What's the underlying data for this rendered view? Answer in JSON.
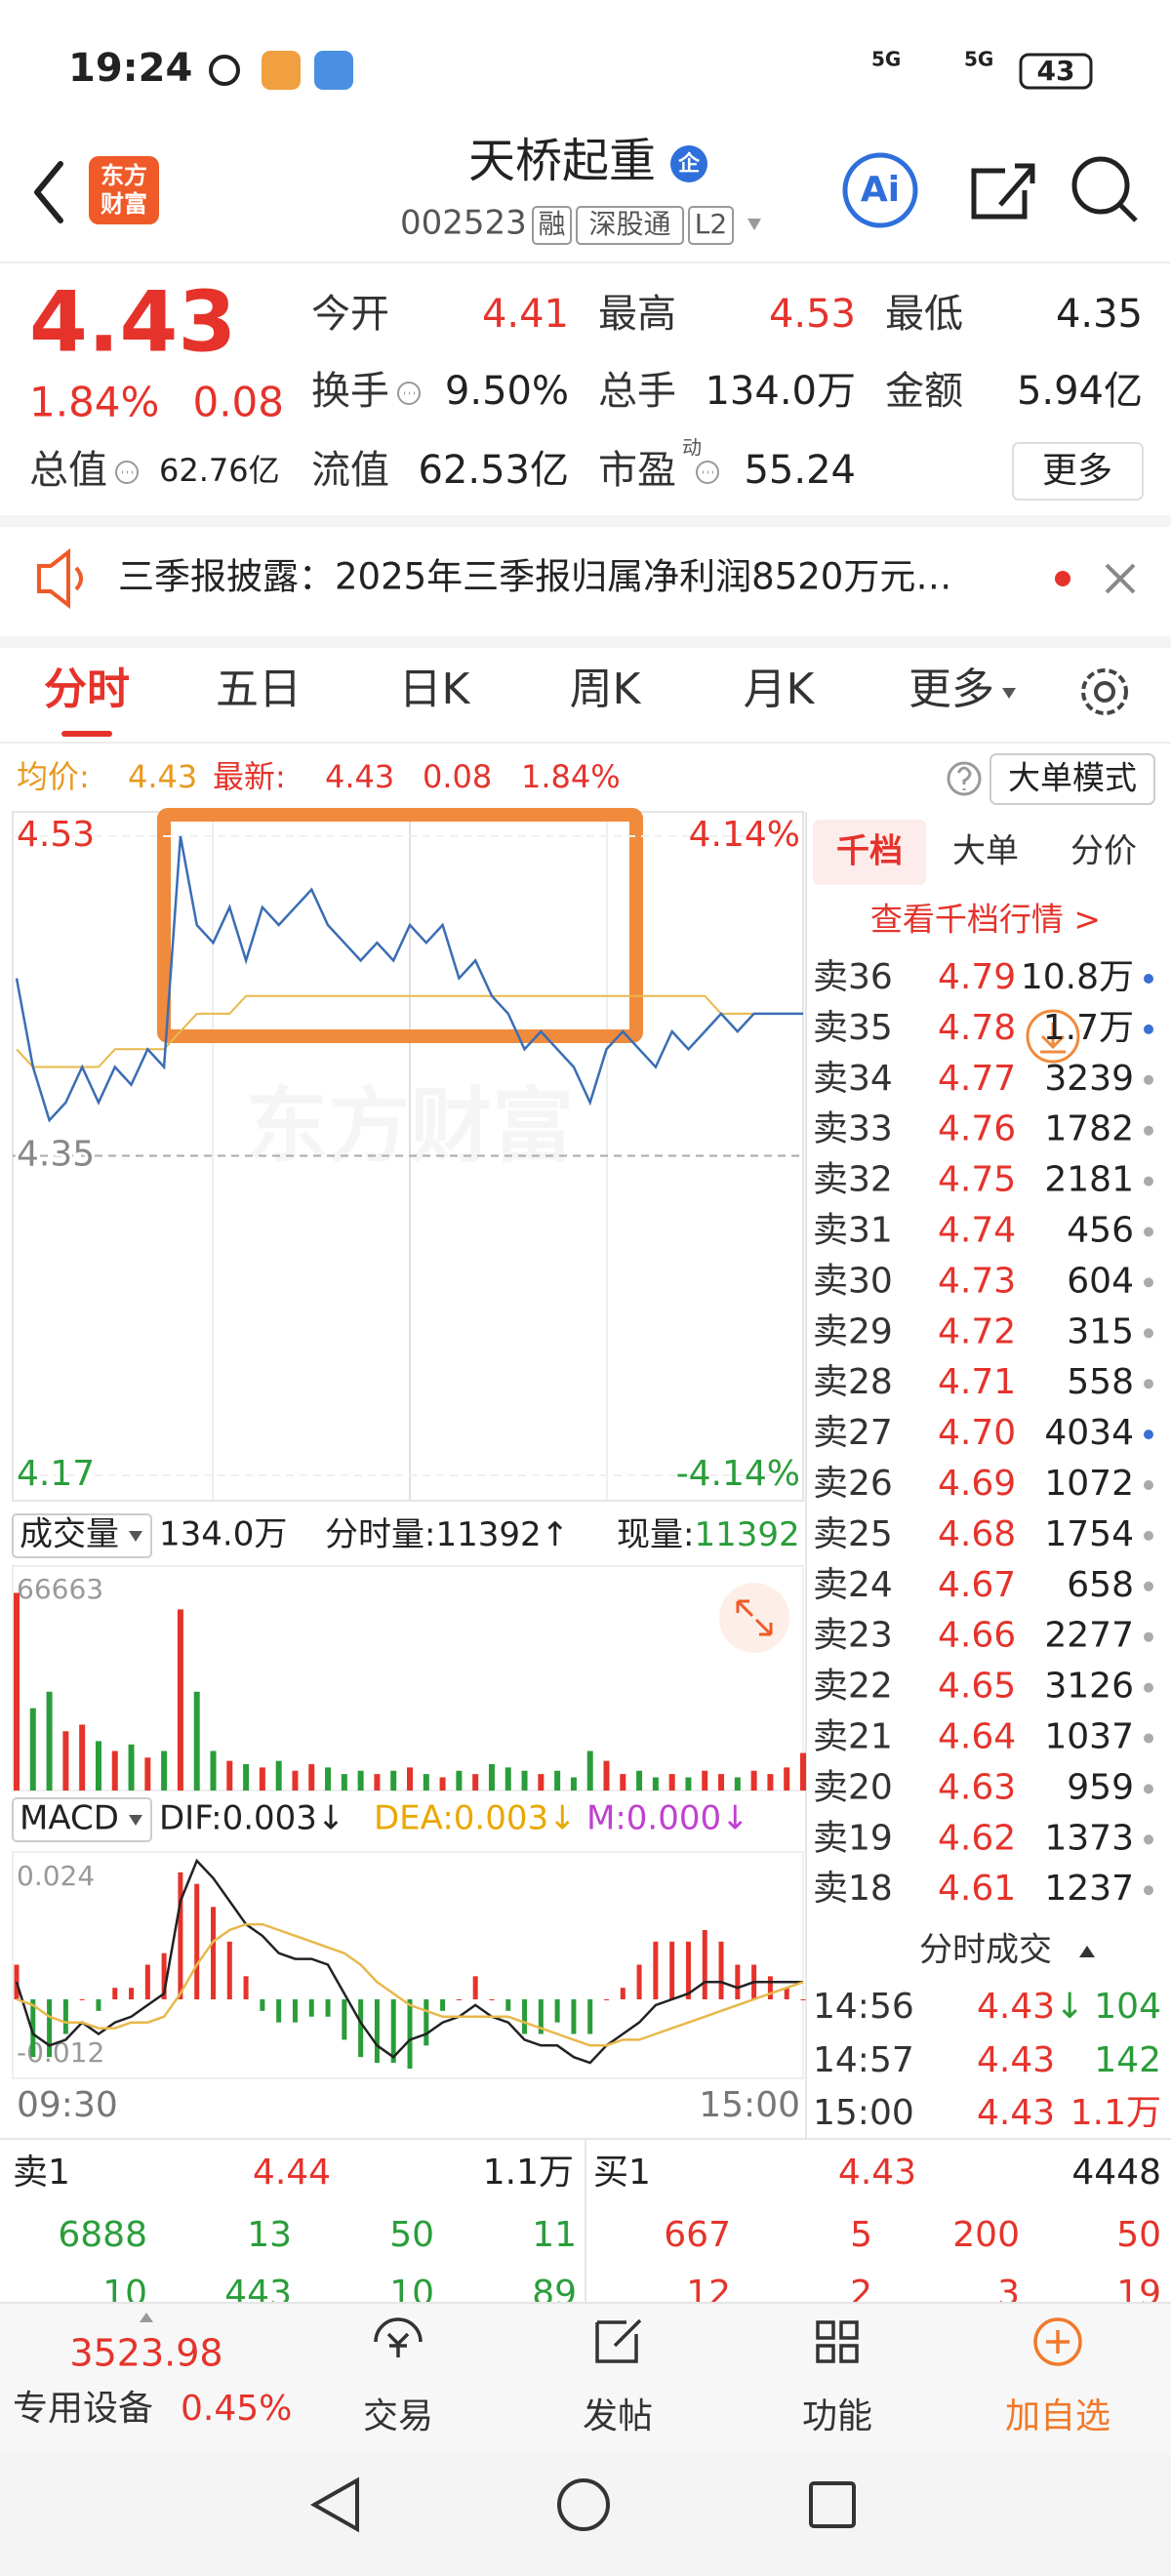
{
  "status_bar": {
    "time": "19:24",
    "network": [
      "5G",
      "5G"
    ],
    "battery": "43"
  },
  "header": {
    "logo": [
      "东方",
      "财富"
    ],
    "title": "天桥起重",
    "badge": "企",
    "code": "002523",
    "tags": [
      "融",
      "深股通",
      "L2"
    ],
    "ai": "Ai"
  },
  "quote": {
    "price": "4.43",
    "change_pct": "1.84%",
    "change": "0.08",
    "fields": [
      {
        "label": "今开",
        "value": "4.41",
        "color": "#e5332b"
      },
      {
        "label": "最高",
        "value": "4.53",
        "color": "#e5332b"
      },
      {
        "label": "最低",
        "value": "4.35",
        "color": "#222222"
      },
      {
        "label": "换手",
        "value": "9.50%",
        "color": "#222222",
        "info": true
      },
      {
        "label": "总手",
        "value": "134.0万",
        "color": "#222222"
      },
      {
        "label": "金额",
        "value": "5.94亿",
        "color": "#222222"
      },
      {
        "label": "流值",
        "value": "62.53亿",
        "color": "#222222"
      },
      {
        "label": "市盈",
        "sup": "动",
        "value": "55.24",
        "color": "#222222",
        "info": true
      }
    ],
    "total": {
      "label": "总值",
      "value": "62.76亿"
    },
    "more": "更多"
  },
  "notice": {
    "text": "三季报披露：2025年三季报归属净利润8520万元…"
  },
  "tabs": {
    "items": [
      "分时",
      "五日",
      "日K",
      "周K",
      "月K",
      "更多"
    ],
    "active": 0
  },
  "info_line": {
    "avg_label": "均价:",
    "avg": "4.43",
    "last_label": "最新:",
    "last": "4.43",
    "change": "0.08",
    "change_pct": "1.84%",
    "button": "大单模式"
  },
  "chart_data": [
    {
      "type": "line",
      "watermark": "东方财富",
      "ylim": [
        4.17,
        4.53
      ],
      "yticks": [
        4.53,
        4.35,
        4.17
      ],
      "right_labels": [
        "4.14%",
        "-4.14%"
      ],
      "x_labels": [
        "09:30",
        "15:00"
      ],
      "series": [
        {
          "color": "#3a6db5",
          "values": [
            4.45,
            4.4,
            4.37,
            4.38,
            4.4,
            4.38,
            4.4,
            4.39,
            4.41,
            4.4,
            4.53,
            4.48,
            4.47,
            4.49,
            4.46,
            4.49,
            4.48,
            4.49,
            4.5,
            4.48,
            4.47,
            4.46,
            4.47,
            4.46,
            4.48,
            4.47,
            4.48,
            4.45,
            4.46,
            4.44,
            4.43,
            4.41,
            4.42,
            4.41,
            4.4,
            4.38,
            4.41,
            4.42,
            4.41,
            4.4,
            4.42,
            4.41,
            4.42,
            4.43,
            4.42,
            4.43,
            4.43,
            4.43,
            4.43
          ]
        },
        {
          "color": "#e8b84a",
          "values": [
            4.41,
            4.4,
            4.4,
            4.4,
            4.4,
            4.4,
            4.41,
            4.41,
            4.41,
            4.41,
            4.42,
            4.43,
            4.43,
            4.43,
            4.44,
            4.44,
            4.44,
            4.44,
            4.44,
            4.44,
            4.44,
            4.44,
            4.44,
            4.44,
            4.44,
            4.44,
            4.44,
            4.44,
            4.44,
            4.44,
            4.44,
            4.44,
            4.44,
            4.44,
            4.44,
            4.44,
            4.44,
            4.44,
            4.44,
            4.44,
            4.44,
            4.44,
            4.44,
            4.43,
            4.43,
            4.43,
            4.43,
            4.43,
            4.43
          ]
        }
      ]
    },
    {
      "type": "bar",
      "label": "成交量",
      "total": "134.0万",
      "period_label": "分时量:",
      "period": "11392",
      "period_arrow": "↑",
      "current_label": "现量:",
      "current": "11392",
      "ylim": [
        0,
        66663
      ],
      "yticks": [
        66663
      ],
      "up_color": "#e5332b",
      "down_color": "#2a9d3a",
      "values": [
        60000,
        25000,
        30000,
        18000,
        20000,
        15000,
        12000,
        14000,
        10000,
        12000,
        55000,
        30000,
        12000,
        9000,
        8000,
        7000,
        9000,
        6000,
        8000,
        7000,
        5000,
        6000,
        5000,
        6000,
        7000,
        5000,
        4000,
        6000,
        5000,
        8000,
        7000,
        6000,
        5000,
        6000,
        4000,
        12000,
        9000,
        5000,
        6000,
        4000,
        5000,
        4000,
        6000,
        5000,
        4000,
        6000,
        5000,
        7000,
        11392
      ]
    },
    {
      "type": "macd",
      "label": "MACD",
      "indicators": [
        {
          "text": "DIF:0.003↓",
          "color": "#222222"
        },
        {
          "text": "DEA:0.003↓",
          "color": "#e8a800"
        },
        {
          "text": "M:0.000↓",
          "color": "#c040d0"
        }
      ],
      "ylim": [
        -0.012,
        0.024
      ],
      "yticks": [
        0.024,
        -0.012
      ],
      "up_color": "#e5332b",
      "down_color": "#2a9d3a",
      "series": [
        {
          "color": "#222222",
          "values": [
            0.003,
            -0.006,
            -0.008,
            -0.007,
            -0.004,
            -0.006,
            -0.004,
            -0.003,
            -0.001,
            0.001,
            0.017,
            0.024,
            0.021,
            0.017,
            0.013,
            0.011,
            0.008,
            0.007,
            0.007,
            0.006,
            0.001,
            -0.004,
            -0.008,
            -0.01,
            -0.007,
            -0.006,
            -0.004,
            -0.003,
            -0.001,
            -0.003,
            -0.004,
            -0.007,
            -0.008,
            -0.008,
            -0.01,
            -0.011,
            -0.008,
            -0.006,
            -0.004,
            -0.001,
            0,
            0.001,
            0.003,
            0.003,
            0.002,
            0.003,
            0.003,
            0.003,
            0.003
          ]
        },
        {
          "color": "#e8b84a",
          "values": [
            0,
            -0.001,
            -0.003,
            -0.004,
            -0.004,
            -0.005,
            -0.005,
            -0.004,
            -0.004,
            -0.003,
            0.001,
            0.006,
            0.01,
            0.012,
            0.013,
            0.013,
            0.012,
            0.011,
            0.01,
            0.009,
            0.008,
            0.006,
            0.003,
            0.001,
            -0.001,
            -0.002,
            -0.003,
            -0.003,
            -0.003,
            -0.003,
            -0.003,
            -0.004,
            -0.005,
            -0.006,
            -0.007,
            -0.008,
            -0.008,
            -0.007,
            -0.007,
            -0.006,
            -0.005,
            -0.004,
            -0.003,
            -0.002,
            -0.001,
            0,
            0.001,
            0.002,
            0.003
          ]
        }
      ],
      "histogram": [
        0.006,
        -0.01,
        -0.01,
        -0.006,
        0,
        -0.002,
        0.002,
        0.002,
        0.006,
        0.008,
        0.022,
        0.02,
        0.016,
        0.01,
        0.004,
        -0.002,
        -0.004,
        -0.004,
        -0.003,
        -0.003,
        -0.007,
        -0.01,
        -0.011,
        -0.011,
        -0.012,
        -0.008,
        -0.002,
        0,
        0.004,
        0,
        -0.002,
        -0.006,
        -0.006,
        -0.004,
        -0.006,
        -0.006,
        0,
        0.002,
        0.006,
        0.01,
        0.01,
        0.01,
        0.012,
        0.01,
        0.006,
        0.006,
        0.004,
        0.002,
        0
      ]
    }
  ],
  "order_book": {
    "tabs": [
      "千档",
      "大单",
      "分价"
    ],
    "active": 0,
    "link": "查看千档行情 >",
    "rows": [
      {
        "label": "卖36",
        "price": "4.79",
        "qty": "10.8万",
        "dot": "#3b6fd6"
      },
      {
        "label": "卖35",
        "price": "4.78",
        "qty": "1.7万",
        "dot": "#3b6fd6"
      },
      {
        "label": "卖34",
        "price": "4.77",
        "qty": "3239",
        "dot": "#aaaaaa"
      },
      {
        "label": "卖33",
        "price": "4.76",
        "qty": "1782",
        "dot": "#aaaaaa"
      },
      {
        "label": "卖32",
        "price": "4.75",
        "qty": "2181",
        "dot": "#aaaaaa"
      },
      {
        "label": "卖31",
        "price": "4.74",
        "qty": "456",
        "dot": "#aaaaaa"
      },
      {
        "label": "卖30",
        "price": "4.73",
        "qty": "604",
        "dot": "#aaaaaa"
      },
      {
        "label": "卖29",
        "price": "4.72",
        "qty": "315",
        "dot": "#aaaaaa"
      },
      {
        "label": "卖28",
        "price": "4.71",
        "qty": "558",
        "dot": "#aaaaaa"
      },
      {
        "label": "卖27",
        "price": "4.70",
        "qty": "4034",
        "dot": "#3b6fd6"
      },
      {
        "label": "卖26",
        "price": "4.69",
        "qty": "1072",
        "dot": "#aaaaaa"
      },
      {
        "label": "卖25",
        "price": "4.68",
        "qty": "1754",
        "dot": "#aaaaaa"
      },
      {
        "label": "卖24",
        "price": "4.67",
        "qty": "658",
        "dot": "#aaaaaa"
      },
      {
        "label": "卖23",
        "price": "4.66",
        "qty": "2277",
        "dot": "#aaaaaa"
      },
      {
        "label": "卖22",
        "price": "4.65",
        "qty": "3126",
        "dot": "#aaaaaa"
      },
      {
        "label": "卖21",
        "price": "4.64",
        "qty": "1037",
        "dot": "#aaaaaa"
      },
      {
        "label": "卖20",
        "price": "4.63",
        "qty": "959",
        "dot": "#aaaaaa"
      },
      {
        "label": "卖19",
        "price": "4.62",
        "qty": "1373",
        "dot": "#aaaaaa"
      },
      {
        "label": "卖18",
        "price": "4.61",
        "qty": "1237",
        "dot": "#aaaaaa"
      }
    ],
    "trades_title": "分时成交",
    "trades": [
      {
        "time": "14:56",
        "price": "4.43",
        "arrow": "↓",
        "qty": "104",
        "qty_color": "#2a9d3a"
      },
      {
        "time": "14:57",
        "price": "4.43",
        "qty": "142",
        "qty_color": "#2a9d3a"
      },
      {
        "time": "15:00",
        "price": "4.43",
        "qty": "1.1万",
        "qty_color": "#e5332b"
      }
    ]
  },
  "level1": {
    "sell": {
      "label": "卖1",
      "price": "4.44",
      "qty": "1.1万",
      "details": [
        [
          "6888",
          "13",
          "50",
          "11"
        ],
        [
          "10",
          "443",
          "10",
          "89"
        ]
      ]
    },
    "buy": {
      "label": "买1",
      "price": "4.43",
      "qty": "4448",
      "details": [
        [
          "667",
          "5",
          "200",
          "50"
        ],
        [
          "12",
          "2",
          "3",
          "19"
        ]
      ]
    }
  },
  "bottom_nav": {
    "index_value": "3523.98",
    "index_name": "专用设备",
    "index_change": "0.45%",
    "items": [
      "交易",
      "发帖",
      "功能",
      "加自选"
    ]
  }
}
